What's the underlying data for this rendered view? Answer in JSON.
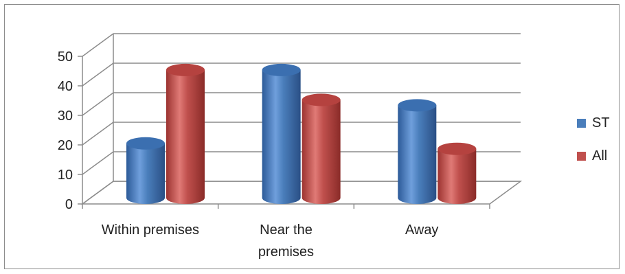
{
  "chart_data": {
    "type": "bar",
    "title": "",
    "xlabel": "",
    "ylabel": "",
    "ylim": [
      0,
      50
    ],
    "yticks": [
      "0",
      "10",
      "20",
      "30",
      "40",
      "50"
    ],
    "categories": [
      [
        "Within premises"
      ],
      [
        "Near the",
        "premises"
      ],
      [
        "Away"
      ]
    ],
    "series": [
      {
        "name": "ST",
        "values": [
          20,
          47,
          34
        ],
        "color": "#4a7ebb"
      },
      {
        "name": "All",
        "values": [
          47,
          36,
          18
        ],
        "color": "#c0504d"
      }
    ],
    "grid": true,
    "legend_position": "right",
    "style": "3d-cylinder"
  }
}
